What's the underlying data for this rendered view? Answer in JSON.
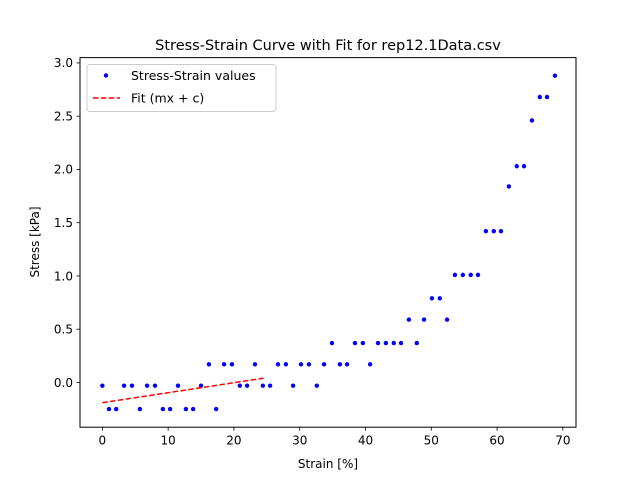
{
  "chart_data": {
    "type": "scatter",
    "title": "Stress-Strain Curve with Fit for rep12.1Data.csv",
    "xlabel": "Strain [%]",
    "ylabel": "Stress [kPa]",
    "xlim": [
      -3.4,
      72.0
    ],
    "ylim": [
      -0.42,
      3.05
    ],
    "xticks": [
      0,
      10,
      20,
      30,
      40,
      50,
      60,
      70
    ],
    "yticks": [
      0.0,
      0.5,
      1.0,
      1.5,
      2.0,
      2.5,
      3.0
    ],
    "xtick_labels": [
      "0",
      "10",
      "20",
      "30",
      "40",
      "50",
      "60",
      "70"
    ],
    "ytick_labels": [
      "0.0",
      "0.5",
      "1.0",
      "1.5",
      "2.0",
      "2.5",
      "3.0"
    ],
    "grid": false,
    "legend_position": "top-left",
    "series": [
      {
        "name": "Stress-Strain values",
        "style": "points",
        "color": "#0000ff",
        "points": [
          [
            0.0,
            -0.03
          ],
          [
            1.0,
            -0.25
          ],
          [
            2.1,
            -0.25
          ],
          [
            3.3,
            -0.03
          ],
          [
            4.5,
            -0.03
          ],
          [
            5.7,
            -0.25
          ],
          [
            6.8,
            -0.03
          ],
          [
            8.0,
            -0.03
          ],
          [
            9.2,
            -0.25
          ],
          [
            10.3,
            -0.25
          ],
          [
            11.5,
            -0.03
          ],
          [
            12.7,
            -0.25
          ],
          [
            13.8,
            -0.25
          ],
          [
            15.0,
            -0.03
          ],
          [
            16.2,
            0.17
          ],
          [
            17.3,
            -0.25
          ],
          [
            18.5,
            0.17
          ],
          [
            19.7,
            0.17
          ],
          [
            20.9,
            -0.03
          ],
          [
            22.0,
            -0.03
          ],
          [
            23.2,
            0.17
          ],
          [
            24.4,
            -0.03
          ],
          [
            25.5,
            -0.03
          ],
          [
            26.7,
            0.17
          ],
          [
            27.9,
            0.17
          ],
          [
            29.0,
            -0.03
          ],
          [
            30.2,
            0.17
          ],
          [
            31.4,
            0.17
          ],
          [
            32.6,
            -0.03
          ],
          [
            33.7,
            0.17
          ],
          [
            34.9,
            0.37
          ],
          [
            36.1,
            0.17
          ],
          [
            37.2,
            0.17
          ],
          [
            38.4,
            0.37
          ],
          [
            39.6,
            0.37
          ],
          [
            40.7,
            0.17
          ],
          [
            41.9,
            0.37
          ],
          [
            43.1,
            0.37
          ],
          [
            44.3,
            0.37
          ],
          [
            45.4,
            0.37
          ],
          [
            46.6,
            0.59
          ],
          [
            47.8,
            0.37
          ],
          [
            48.9,
            0.59
          ],
          [
            50.1,
            0.79
          ],
          [
            51.3,
            0.79
          ],
          [
            52.4,
            0.59
          ],
          [
            53.6,
            1.01
          ],
          [
            54.8,
            1.01
          ],
          [
            56.0,
            1.01
          ],
          [
            57.1,
            1.01
          ],
          [
            58.3,
            1.42
          ],
          [
            59.5,
            1.42
          ],
          [
            60.6,
            1.42
          ],
          [
            61.8,
            1.84
          ],
          [
            63.0,
            2.03
          ],
          [
            64.1,
            2.03
          ],
          [
            65.3,
            2.46
          ],
          [
            66.5,
            2.68
          ],
          [
            67.6,
            2.68
          ],
          [
            68.8,
            2.88
          ]
        ]
      },
      {
        "name": "Fit (mx + c)",
        "style": "dashed-line",
        "color": "#ff0000",
        "points": [
          [
            0.0,
            -0.19
          ],
          [
            24.5,
            0.04
          ]
        ]
      }
    ]
  }
}
